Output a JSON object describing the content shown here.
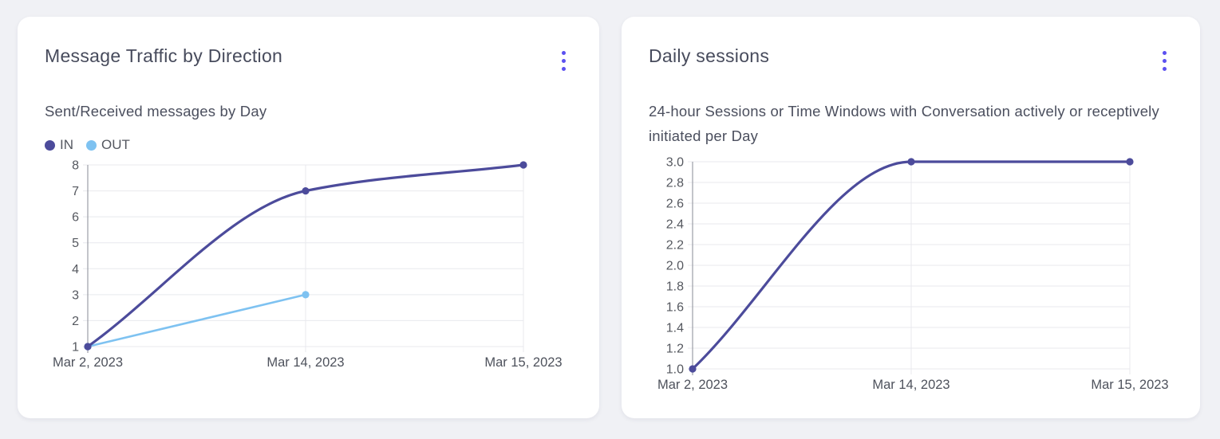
{
  "page": {
    "background": "#F0F1F5",
    "accent": "#5B50F0"
  },
  "cards": [
    {
      "title": "Message Traffic by Direction",
      "subtitle": "Sent/Received messages by Day",
      "menu_icon": "kebab-vertical-dots",
      "legend": [
        {
          "label": "IN",
          "color": "#4C4B9B"
        },
        {
          "label": "OUT",
          "color": "#7EC2F1"
        }
      ]
    },
    {
      "title": "Daily sessions",
      "subtitle": "24-hour Sessions or Time Windows with Conversation actively or receptively initiated per Day",
      "menu_icon": "kebab-vertical-dots"
    }
  ],
  "chart_data": [
    {
      "type": "line",
      "title": "Message Traffic by Direction",
      "subtitle": "Sent/Received messages by Day",
      "categories": [
        "Mar 2, 2023",
        "Mar 14, 2023",
        "Mar 15, 2023"
      ],
      "series": [
        {
          "name": "IN",
          "values": [
            1,
            7,
            8
          ],
          "color": "#4C4B9B"
        },
        {
          "name": "OUT",
          "values": [
            1,
            3,
            null
          ],
          "color": "#7EC2F1"
        }
      ],
      "xlabel": "",
      "ylabel": "",
      "ylim": [
        1,
        8
      ],
      "yticks": [
        1,
        2,
        3,
        4,
        5,
        6,
        7,
        8
      ],
      "y_tick_decimals": 0,
      "grid": true,
      "curve": "monotone",
      "legend_position": "top-left"
    },
    {
      "type": "line",
      "title": "Daily sessions",
      "subtitle": "24-hour Sessions or Time Windows with Conversation actively or receptively initiated per Day",
      "categories": [
        "Mar 2, 2023",
        "Mar 14, 2023",
        "Mar 15, 2023"
      ],
      "series": [
        {
          "name": "Daily sessions",
          "values": [
            1,
            3,
            3
          ],
          "color": "#4C4B9B"
        }
      ],
      "xlabel": "",
      "ylabel": "",
      "ylim": [
        1,
        3
      ],
      "yticks": [
        1.0,
        1.2,
        1.4,
        1.6,
        1.8,
        2.0,
        2.2,
        2.4,
        2.6,
        2.8,
        3.0
      ],
      "y_tick_decimals": 1,
      "grid": true,
      "curve": "monotone",
      "legend_position": "none"
    }
  ],
  "chart_colors": {
    "gridline": "#E8E9ED",
    "y_axis": "#9B9EA6",
    "tick_label": "#55585F",
    "x_label": "#4E525C"
  }
}
